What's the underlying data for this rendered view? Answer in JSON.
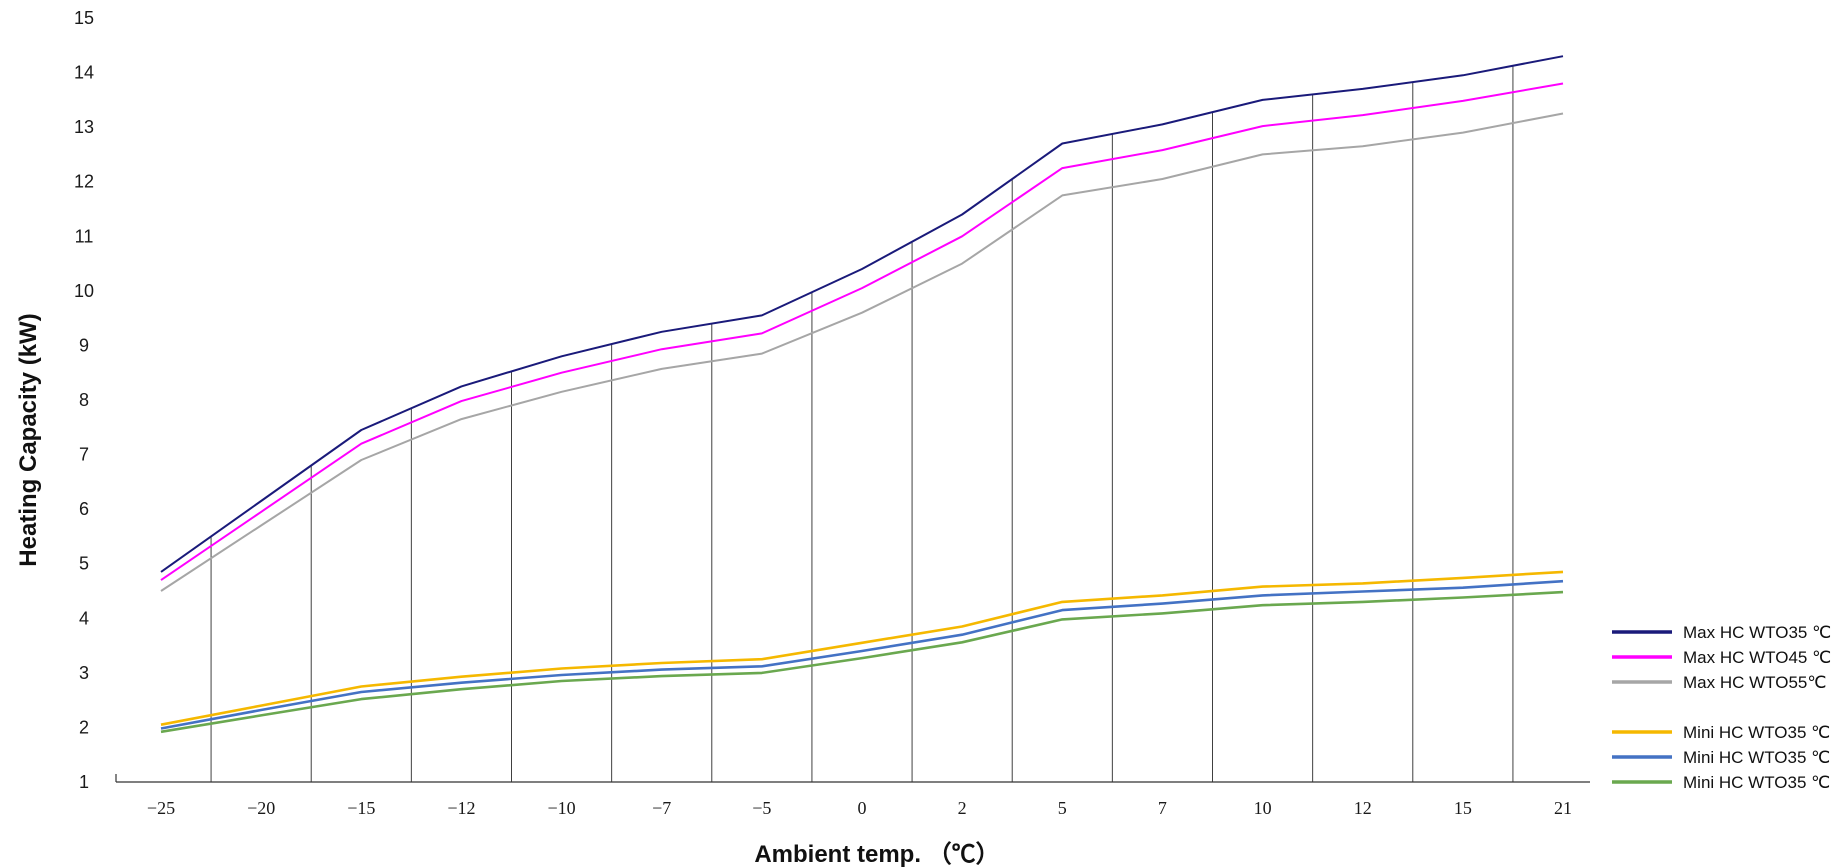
{
  "chart_data": {
    "type": "line",
    "title": "",
    "xlabel": "Ambient temp. （℃）",
    "ylabel": "Heating Capacity (kW)",
    "ylim": [
      1,
      15
    ],
    "y_ticks": [
      1,
      2,
      3,
      4,
      5,
      6,
      7,
      8,
      9,
      10,
      11,
      12,
      13,
      14,
      15
    ],
    "x_ticks": [
      "-25",
      "-20",
      "-15",
      "-12",
      "-10",
      "-7",
      "-5",
      "0",
      "2",
      "5",
      "7",
      "10",
      "12",
      "15",
      "21"
    ],
    "categories": [
      "-25",
      "-20",
      "-15",
      "-12",
      "-10",
      "-7",
      "-5",
      "0",
      "2",
      "5",
      "7",
      "10",
      "12",
      "15",
      "21"
    ],
    "grid": "vertical lines between categories",
    "legend_position": "bottom-right",
    "series": [
      {
        "name": "Max HC WTO35 ℃",
        "color": "#1a1a7a",
        "values": [
          4.85,
          6.15,
          7.45,
          8.25,
          8.8,
          9.25,
          9.55,
          10.4,
          11.4,
          12.7,
          13.05,
          13.5,
          13.7,
          13.95,
          14.3
        ]
      },
      {
        "name": "Max HC WTO45 ℃",
        "color": "#ff00ff",
        "values": [
          4.7,
          5.95,
          7.2,
          7.98,
          8.5,
          8.93,
          9.22,
          10.05,
          11.0,
          12.25,
          12.58,
          13.02,
          13.22,
          13.48,
          13.8
        ]
      },
      {
        "name": "Max HC WTO55℃",
        "color": "#a6a6a6",
        "values": [
          4.5,
          5.7,
          6.9,
          7.65,
          8.15,
          8.57,
          8.85,
          9.6,
          10.5,
          11.75,
          12.05,
          12.5,
          12.65,
          12.9,
          13.25
        ]
      },
      {
        "name": "Mini HC WTO35 ℃",
        "color": "#f5b800",
        "values": [
          2.05,
          2.4,
          2.75,
          2.93,
          3.08,
          3.18,
          3.25,
          3.55,
          3.85,
          4.3,
          4.42,
          4.58,
          4.64,
          4.74,
          4.85
        ]
      },
      {
        "name": "Mini HC WTO35 ℃",
        "color": "#4472c4",
        "values": [
          1.98,
          2.32,
          2.65,
          2.82,
          2.96,
          3.06,
          3.12,
          3.4,
          3.7,
          4.15,
          4.27,
          4.42,
          4.49,
          4.56,
          4.68
        ]
      },
      {
        "name": "Mini HC WTO35 ℃",
        "color": "#6aa84f",
        "values": [
          1.92,
          2.22,
          2.52,
          2.7,
          2.85,
          2.94,
          3.0,
          3.27,
          3.56,
          3.98,
          4.09,
          4.24,
          4.3,
          4.38,
          4.48
        ]
      }
    ]
  }
}
